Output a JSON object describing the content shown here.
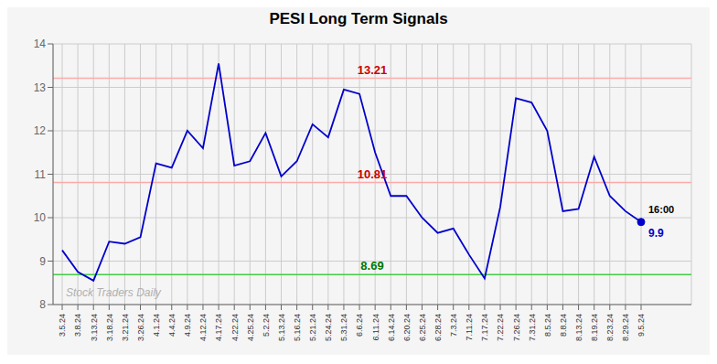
{
  "chart_data": {
    "type": "line",
    "title": "PESI Long Term Signals",
    "categories": [
      "3.5.24",
      "3.8.24",
      "3.13.24",
      "3.18.24",
      "3.21.24",
      "3.26.24",
      "4.1.24",
      "4.4.24",
      "4.9.24",
      "4.12.24",
      "4.17.24",
      "4.22.24",
      "4.25.24",
      "5.2.24",
      "5.13.24",
      "5.16.24",
      "5.21.24",
      "5.24.24",
      "5.31.24",
      "6.6.24",
      "6.11.24",
      "6.14.24",
      "6.20.24",
      "6.25.24",
      "6.28.24",
      "7.3.24",
      "7.11.24",
      "7.17.24",
      "7.22.24",
      "7.26.24",
      "7.31.24",
      "8.5.24",
      "8.8.24",
      "8.13.24",
      "8.19.24",
      "8.23.24",
      "8.29.24",
      "9.5.24"
    ],
    "values": [
      9.25,
      8.75,
      8.55,
      9.45,
      9.4,
      9.55,
      11.25,
      11.15,
      12.0,
      11.6,
      13.55,
      11.2,
      11.3,
      11.95,
      10.95,
      11.3,
      12.15,
      11.85,
      12.95,
      12.85,
      11.5,
      10.5,
      10.5,
      10.0,
      9.65,
      9.75,
      9.15,
      8.6,
      10.25,
      12.75,
      12.65,
      12.0,
      10.15,
      10.2,
      11.4,
      10.5,
      10.15,
      9.9
    ],
    "color": "#0000cc",
    "ylim": [
      8.0,
      14.0
    ],
    "yticks": [
      8,
      9,
      10,
      11,
      12,
      13,
      14
    ],
    "grid": true,
    "background_color": "#f5f5f5",
    "reference_lines": [
      {
        "value": 13.21,
        "label": "13.21",
        "color": "#ffaaaa",
        "label_color": "#cc0000"
      },
      {
        "value": 10.81,
        "label": "10.81",
        "color": "#ffaaaa",
        "label_color": "#cc0000"
      },
      {
        "value": 8.69,
        "label": "8.69",
        "color": "#44cc44",
        "label_color": "#007700"
      }
    ],
    "annotations": [
      {
        "text": "Stock Traders Daily",
        "color": "#b0b0b0"
      },
      {
        "text": "16:00",
        "color": "#000000"
      },
      {
        "text": "9.9",
        "color": "#0000cc"
      }
    ]
  }
}
